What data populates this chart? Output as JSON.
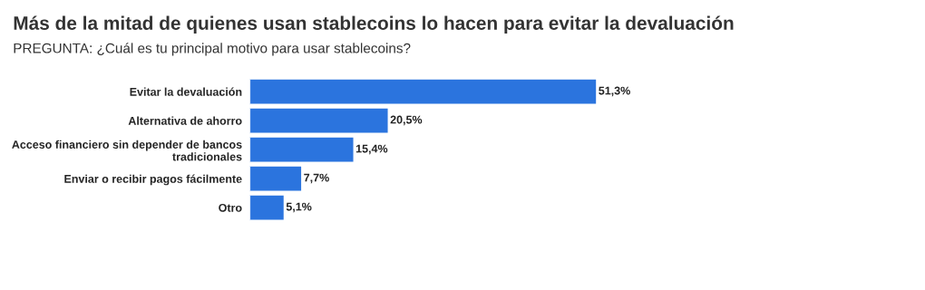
{
  "chart_data": {
    "type": "bar",
    "orientation": "horizontal",
    "title": "Más de la mitad de quienes usan stablecoins lo hacen para evitar la devaluación",
    "subtitle": "PREGUNTA: ¿Cuál es tu principal motivo para usar stablecoins?",
    "categories": [
      "Evitar la devaluación",
      "Alternativa de ahorro",
      "Acceso financiero sin depender de bancos\ntradicionales",
      "Enviar o recibir pagos fácilmente",
      "Otro"
    ],
    "values": [
      51.3,
      20.5,
      15.4,
      7.7,
      5.1
    ],
    "value_labels": [
      "51,3%",
      "20,5%",
      "15,4%",
      "7,7%",
      "5,1%"
    ],
    "color": "#2b74de",
    "grid": false,
    "legend": false
  }
}
